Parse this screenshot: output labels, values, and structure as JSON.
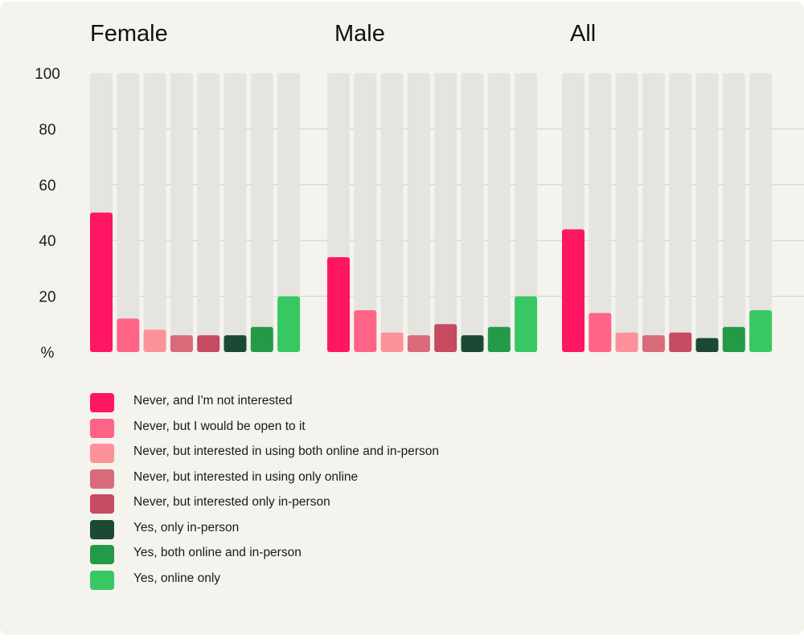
{
  "chart_data": {
    "type": "bar",
    "panels": [
      {
        "title": "Female",
        "values": [
          50,
          12,
          8,
          6,
          6,
          6,
          9,
          20
        ]
      },
      {
        "title": "Male",
        "values": [
          34,
          15,
          7,
          6,
          10,
          6,
          9,
          20
        ]
      },
      {
        "title": "All",
        "values": [
          44,
          14,
          7,
          6,
          7,
          5,
          9,
          15
        ]
      }
    ],
    "series": [
      {
        "name": "Never, and I'm not interested",
        "color": "#ff1662"
      },
      {
        "name": "Never, but I would be open to it",
        "color": "#ff6487"
      },
      {
        "name": "Never, but interested in using both online and in-person",
        "color": "#fd9199"
      },
      {
        "name": "Never, but interested in using only online",
        "color": "#d96a7a"
      },
      {
        "name": "Never, but interested only in-person",
        "color": "#c64a60"
      },
      {
        "name": "Yes, only in-person",
        "color": "#1b4a34"
      },
      {
        "name": "Yes, both online and in-person",
        "color": "#249a49"
      },
      {
        "name": "Yes, online only",
        "color": "#38c863"
      }
    ],
    "yticks": [
      100,
      80,
      60,
      40,
      20
    ],
    "ylabel": "%",
    "ylim": [
      0,
      100
    ],
    "track_color": "#e5e4de",
    "grid_color": "#cfcfca"
  }
}
